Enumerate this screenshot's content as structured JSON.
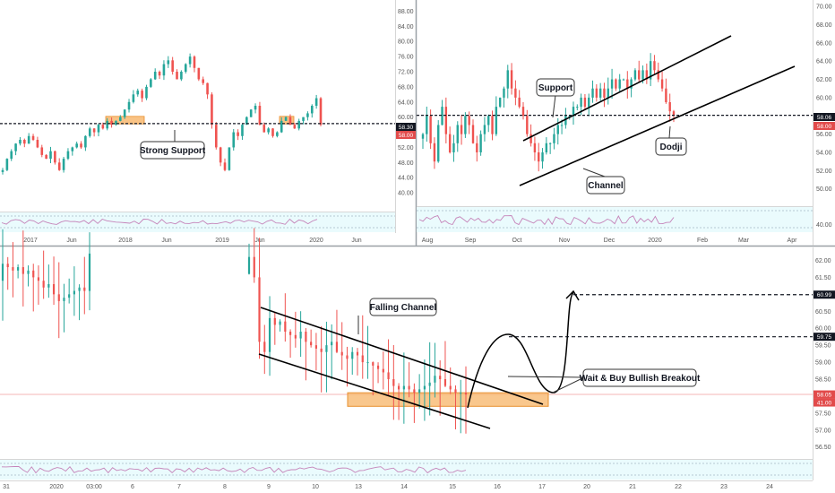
{
  "colors": {
    "up": "#26a69a",
    "down": "#ef5350",
    "zone": "#f7b467",
    "zone_stroke": "#e8902f",
    "osc": "#c583b9",
    "osc_band": "#dff5f8",
    "price_badge_dark": "#131722",
    "price_badge_red": "#e24b4b"
  },
  "chart_data": [
    {
      "type": "candlestick",
      "panel": "weekly",
      "y_ticks": [
        "88.00",
        "84.00",
        "80.00",
        "76.00",
        "72.00",
        "68.00",
        "64.00",
        "60.00",
        "56.00",
        "52.00",
        "48.00",
        "44.00",
        "40.00"
      ],
      "ylim": [
        36,
        90
      ],
      "x_ticks": [
        "2017",
        "Jun",
        "2018",
        "Jun",
        "2019",
        "Jun",
        "2020",
        "Jun"
      ],
      "price_labels": [
        "58.30",
        "58.00"
      ],
      "annotations": [
        "Strong Support"
      ],
      "support_level": 58.3,
      "close_series": [
        46,
        49,
        51,
        53,
        54,
        53,
        55,
        54,
        52,
        50,
        49,
        51,
        48,
        46,
        49,
        51,
        52,
        53,
        52,
        55,
        57,
        56,
        58,
        57,
        59,
        58,
        59,
        60,
        62,
        64,
        66,
        67,
        65,
        68,
        70,
        72,
        71,
        74,
        75,
        72,
        70,
        72,
        74,
        76,
        73,
        70,
        69,
        66,
        58,
        52,
        48,
        46,
        52,
        56,
        55,
        58,
        60,
        62,
        63,
        58,
        56,
        57,
        55,
        56,
        59,
        60,
        58,
        57,
        59,
        60,
        61,
        63,
        65,
        58
      ],
      "marked_zones": 2
    },
    {
      "type": "candlestick",
      "panel": "daily",
      "y_ticks": [
        "70.00",
        "68.00",
        "66.00",
        "64.00",
        "62.00",
        "60.00",
        "58.00",
        "56.00",
        "54.00",
        "52.00",
        "50.00"
      ],
      "oscillator_ticks": [
        "40.00"
      ],
      "ylim": [
        48.5,
        70.5
      ],
      "x_ticks": [
        "Aug",
        "Sep",
        "Oct",
        "Nov",
        "Dec",
        "2020",
        "Feb",
        "Mar",
        "Apr"
      ],
      "price_labels": [
        "58.06",
        "58.00"
      ],
      "annotations": [
        "Support",
        "Channel",
        "Dodji"
      ],
      "support_level": 58.06,
      "close_series": [
        56,
        58,
        55,
        53,
        57,
        59,
        56,
        54,
        55,
        57,
        56,
        58,
        57,
        55,
        54,
        56,
        57,
        58,
        56,
        59,
        60,
        61,
        63,
        61,
        60,
        59,
        58,
        56,
        55,
        54,
        53,
        54,
        55,
        55,
        56,
        57,
        57,
        58,
        58,
        59,
        59,
        60,
        59,
        60,
        61,
        60,
        61,
        60,
        61,
        62,
        61,
        62,
        62,
        61,
        62,
        63,
        62,
        63,
        62,
        64,
        63,
        62,
        61,
        59.5,
        58.5,
        58.06
      ]
    },
    {
      "type": "candlestick",
      "panel": "intraday",
      "y_ticks": [
        "62.00",
        "61.50",
        "61.00",
        "60.50",
        "60.00",
        "59.50",
        "59.00",
        "58.50",
        "58.00",
        "57.50",
        "57.00",
        "56.50"
      ],
      "ylim": [
        56.15,
        62.25
      ],
      "x_ticks": [
        "31",
        "2020",
        "03:00",
        "6",
        "7",
        "8",
        "9",
        "10",
        "13",
        "14",
        "15",
        "16",
        "17",
        "20",
        "21",
        "22",
        "23",
        "24"
      ],
      "price_labels": [
        "60.99",
        "59.75",
        "58.05",
        "41.00"
      ],
      "annotations": [
        "Falling Channel",
        "Wait & Buy Bullish Breakout"
      ],
      "target_levels": [
        60.99,
        59.75
      ],
      "current_price": 58.05,
      "close_series_a": [
        61.9,
        61.8,
        61.7,
        61.8,
        61.6,
        61.7,
        61.5,
        61.4,
        61.2,
        61.3,
        61.0,
        60.8,
        60.9,
        61.0,
        61.1,
        61.2,
        61.1,
        62.2
      ],
      "close_series_b": [
        62.1,
        61.5,
        59.6,
        59.3,
        60.3,
        60.1,
        60.2,
        59.9,
        59.8,
        59.7,
        59.9,
        59.6,
        59.5,
        59.4,
        59.3,
        59.5,
        59.6,
        59.3,
        59.2,
        59.1,
        59.3,
        59.2,
        59.0,
        59.0,
        58.9,
        58.8,
        58.7,
        58.5,
        58.3,
        58.2,
        58.3,
        58.2,
        58.1,
        58.2,
        58.3,
        58.4,
        58.6,
        58.5,
        58.3,
        58.2,
        58.1,
        58.1,
        58.05
      ]
    }
  ]
}
